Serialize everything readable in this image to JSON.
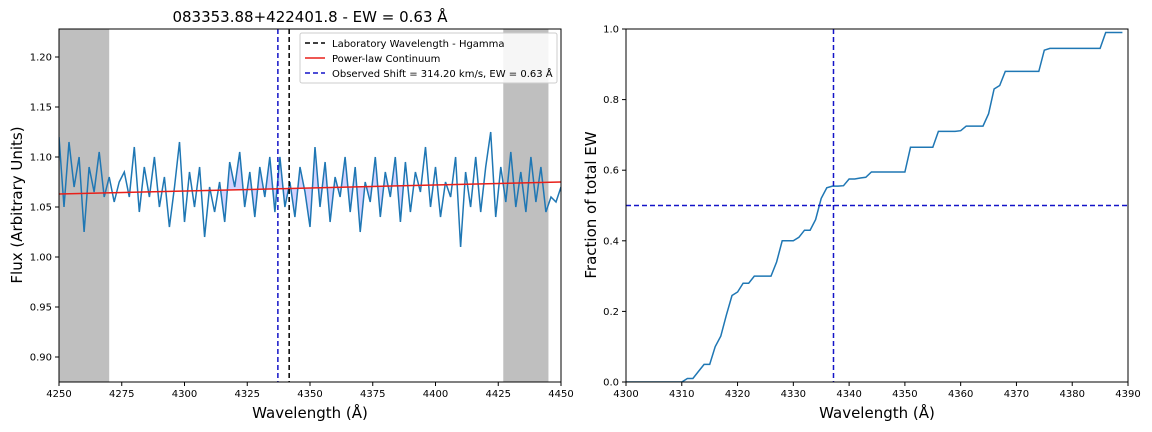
{
  "chart_data": [
    {
      "type": "line",
      "title": "083353.88+422401.8 - EW = 0.63 Å",
      "xlabel": "Wavelength (Å)",
      "ylabel": "Flux (Arbitrary Units)",
      "xlim": [
        4250,
        4450
      ],
      "ylim": [
        0.875,
        1.228
      ],
      "xticks": [
        "4250",
        "4275",
        "4300",
        "4325",
        "4350",
        "4375",
        "4400",
        "4425",
        "4450"
      ],
      "yticks": [
        "0.90",
        "0.95",
        "1.00",
        "1.05",
        "1.10",
        "1.15",
        "1.20"
      ],
      "grid": false,
      "legend_position": "upper-right",
      "legend": [
        "Laboratory Wavelength - Hgamma",
        "Power-law Continuum",
        "Observed Shift = 314.20 km/s, EW = 0.63 Å"
      ],
      "shaded_regions": [
        [
          4250,
          4270
        ],
        [
          4427,
          4445
        ]
      ],
      "lab_wavelength": 4341.7,
      "observed_wavelength": 4337.2,
      "continuum": {
        "x": [
          4250,
          4450
        ],
        "y": [
          1.063,
          1.075
        ]
      },
      "integration_range": [
        4313,
        4388
      ],
      "spectrum": {
        "x": [
          4250,
          4252,
          4254,
          4256,
          4258,
          4260,
          4262,
          4264,
          4266,
          4268,
          4270,
          4272,
          4274,
          4276,
          4278,
          4280,
          4282,
          4284,
          4286,
          4288,
          4290,
          4292,
          4294,
          4296,
          4298,
          4300,
          4302,
          4304,
          4306,
          4308,
          4310,
          4312,
          4314,
          4316,
          4318,
          4320,
          4322,
          4324,
          4326,
          4328,
          4330,
          4332,
          4334,
          4336,
          4338,
          4340,
          4342,
          4344,
          4346,
          4348,
          4350,
          4352,
          4354,
          4356,
          4358,
          4360,
          4362,
          4364,
          4366,
          4368,
          4370,
          4372,
          4374,
          4376,
          4378,
          4380,
          4382,
          4384,
          4386,
          4388,
          4390,
          4392,
          4394,
          4396,
          4398,
          4400,
          4402,
          4404,
          4406,
          4408,
          4410,
          4412,
          4414,
          4416,
          4418,
          4420,
          4422,
          4424,
          4426,
          4428,
          4430,
          4432,
          4434,
          4436,
          4438,
          4440,
          4442,
          4444,
          4446,
          4448,
          4450
        ],
        "y": [
          1.12,
          1.05,
          1.115,
          1.07,
          1.1,
          1.025,
          1.09,
          1.065,
          1.105,
          1.06,
          1.08,
          1.055,
          1.075,
          1.085,
          1.06,
          1.11,
          1.045,
          1.09,
          1.06,
          1.1,
          1.05,
          1.08,
          1.03,
          1.07,
          1.115,
          1.035,
          1.085,
          1.05,
          1.09,
          1.02,
          1.07,
          1.045,
          1.075,
          1.035,
          1.095,
          1.07,
          1.105,
          1.05,
          1.085,
          1.04,
          1.09,
          1.06,
          1.1,
          1.045,
          1.1,
          1.05,
          1.075,
          1.04,
          1.09,
          1.065,
          1.03,
          1.11,
          1.05,
          1.095,
          1.035,
          1.08,
          1.06,
          1.1,
          1.045,
          1.09,
          1.025,
          1.075,
          1.055,
          1.1,
          1.04,
          1.085,
          1.06,
          1.1,
          1.035,
          1.095,
          1.045,
          1.085,
          1.065,
          1.11,
          1.05,
          1.09,
          1.04,
          1.075,
          1.06,
          1.1,
          1.01,
          1.085,
          1.05,
          1.1,
          1.045,
          1.09,
          1.125,
          1.04,
          1.09,
          1.055,
          1.105,
          1.05,
          1.085,
          1.045,
          1.1,
          1.055,
          1.09,
          1.045,
          1.06,
          1.055,
          1.07
        ]
      }
    },
    {
      "type": "line",
      "title": "",
      "xlabel": "Wavelength (Å)",
      "ylabel": "Fraction of total EW",
      "xlim": [
        4300,
        4390
      ],
      "ylim": [
        0.0,
        1.0
      ],
      "xticks": [
        "4300",
        "4310",
        "4320",
        "4330",
        "4340",
        "4350",
        "4360",
        "4370",
        "4380",
        "4390"
      ],
      "yticks": [
        "0.0",
        "0.2",
        "0.4",
        "0.6",
        "0.8",
        "1.0"
      ],
      "grid": false,
      "vline": 4337.2,
      "hline": 0.5,
      "x": [
        4300,
        4310,
        4311,
        4312,
        4313,
        4314,
        4315,
        4316,
        4317,
        4318,
        4319,
        4320,
        4321,
        4322,
        4323,
        4324,
        4325,
        4326,
        4327,
        4328,
        4329,
        4330,
        4331,
        4332,
        4333,
        4334,
        4335,
        4336,
        4337,
        4338,
        4339,
        4340,
        4341,
        4342,
        4343,
        4344,
        4345,
        4346,
        4347,
        4348,
        4349,
        4350,
        4351,
        4352,
        4353,
        4354,
        4355,
        4356,
        4357,
        4358,
        4359,
        4360,
        4361,
        4362,
        4363,
        4364,
        4365,
        4366,
        4367,
        4368,
        4369,
        4370,
        4371,
        4372,
        4373,
        4374,
        4375,
        4376,
        4377,
        4378,
        4379,
        4380,
        4381,
        4382,
        4383,
        4384,
        4385,
        4386,
        4387,
        4388,
        4389
      ],
      "y": [
        0.0,
        0.0,
        0.01,
        0.01,
        0.03,
        0.05,
        0.05,
        0.1,
        0.13,
        0.19,
        0.245,
        0.255,
        0.28,
        0.28,
        0.3,
        0.3,
        0.3,
        0.3,
        0.34,
        0.4,
        0.4,
        0.4,
        0.41,
        0.43,
        0.43,
        0.46,
        0.52,
        0.55,
        0.555,
        0.555,
        0.556,
        0.575,
        0.575,
        0.578,
        0.58,
        0.595,
        0.595,
        0.595,
        0.595,
        0.595,
        0.595,
        0.595,
        0.665,
        0.665,
        0.665,
        0.665,
        0.665,
        0.71,
        0.71,
        0.71,
        0.71,
        0.712,
        0.725,
        0.725,
        0.725,
        0.725,
        0.76,
        0.83,
        0.84,
        0.88,
        0.88,
        0.88,
        0.88,
        0.88,
        0.88,
        0.88,
        0.94,
        0.945,
        0.945,
        0.945,
        0.945,
        0.945,
        0.945,
        0.945,
        0.945,
        0.945,
        0.945,
        0.99,
        0.99,
        0.99,
        0.99
      ]
    }
  ],
  "colors": {
    "spectrum": "#1f77b4",
    "continuum": "#e8201a",
    "lab_line": "#000000",
    "observed_line": "#1414c8",
    "fill": "#c8c8ff",
    "shade": "#bfbfbf"
  }
}
